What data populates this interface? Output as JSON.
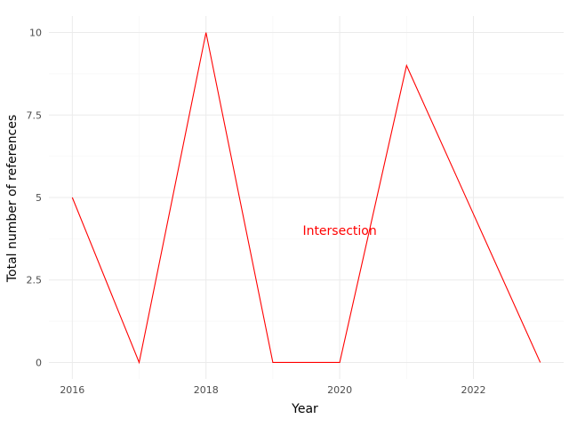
{
  "chart_data": {
    "type": "line",
    "title": "",
    "xlabel": "Year",
    "ylabel": "Total number of references",
    "x": [
      2016,
      2017,
      2018,
      2019,
      2020,
      2021,
      2022,
      2023
    ],
    "series": [
      {
        "values": [
          5,
          0,
          10,
          0,
          0,
          9,
          4.5,
          0
        ],
        "color": "#ff0000"
      }
    ],
    "xlim": [
      2015.65,
      2023.35
    ],
    "ylim": [
      -0.5,
      10.5
    ],
    "x_ticks": [
      2016,
      2018,
      2020,
      2022
    ],
    "x_tick_labels": [
      "2016",
      "2018",
      "2020",
      "2022"
    ],
    "y_ticks": [
      0,
      2.5,
      5,
      7.5,
      10
    ],
    "y_tick_labels": [
      "0",
      "2.5",
      "5",
      "7.5",
      "10"
    ],
    "annotation": {
      "text": "Intersection",
      "x": 2020,
      "y": 4,
      "color": "#ff0000"
    },
    "grid": true,
    "legend": "none"
  }
}
